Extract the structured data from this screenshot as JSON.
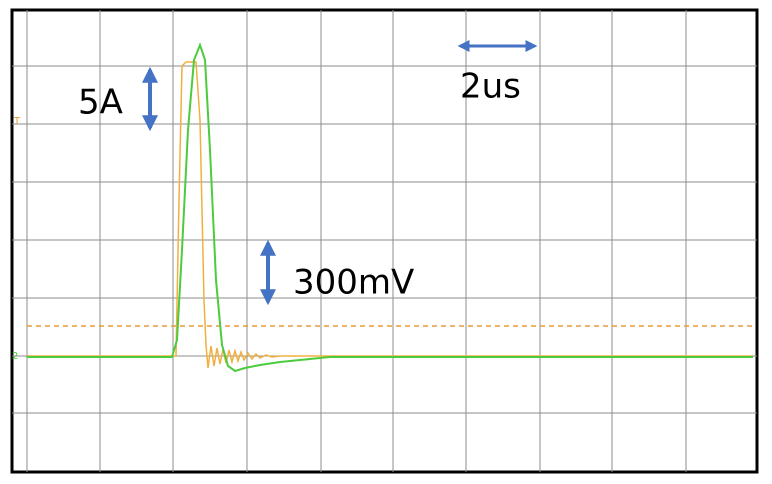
{
  "annotations": {
    "current_scale": "5A",
    "time_scale": "2us",
    "voltage_scale": "300mV"
  }
}
